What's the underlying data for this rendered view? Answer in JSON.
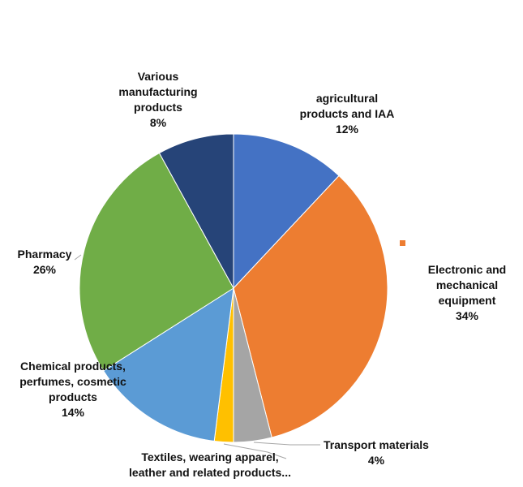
{
  "chart_data": {
    "type": "pie",
    "title": "",
    "start_angle_deg": 0,
    "direction": "clockwise",
    "slices": [
      {
        "label": "agricultural products and IAA",
        "label_lines": [
          "agricultural",
          "products and IAA"
        ],
        "value": 12,
        "percent_label": "12%",
        "color": "#4472C4"
      },
      {
        "label": "Electronic and mechanical equipment",
        "label_lines": [
          "Electronic and",
          "mechanical",
          "equipment"
        ],
        "value": 34,
        "percent_label": "34%",
        "color": "#ED7D31"
      },
      {
        "label": "Transport materials",
        "label_lines": [
          "Transport materials"
        ],
        "value": 4,
        "percent_label": "4%",
        "color": "#A5A5A5"
      },
      {
        "label": "Textiles, wearing apparel, leather and related products...",
        "label_lines": [
          "Textiles, wearing apparel,",
          "leather and related products..."
        ],
        "value": 2,
        "percent_label": "",
        "color": "#FFC000"
      },
      {
        "label": "Chemical products, perfumes, cosmetic products",
        "label_lines": [
          "Chemical products,",
          "perfumes, cosmetic",
          "products"
        ],
        "value": 14,
        "percent_label": "14%",
        "color": "#5B9BD5"
      },
      {
        "label": "Pharmacy",
        "label_lines": [
          "Pharmacy"
        ],
        "value": 26,
        "percent_label": "26%",
        "color": "#70AD47"
      },
      {
        "label": "Various manufacturing products",
        "label_lines": [
          "Various",
          "manufacturing",
          "products"
        ],
        "value": 8,
        "percent_label": "8%",
        "color": "#264478"
      }
    ]
  }
}
